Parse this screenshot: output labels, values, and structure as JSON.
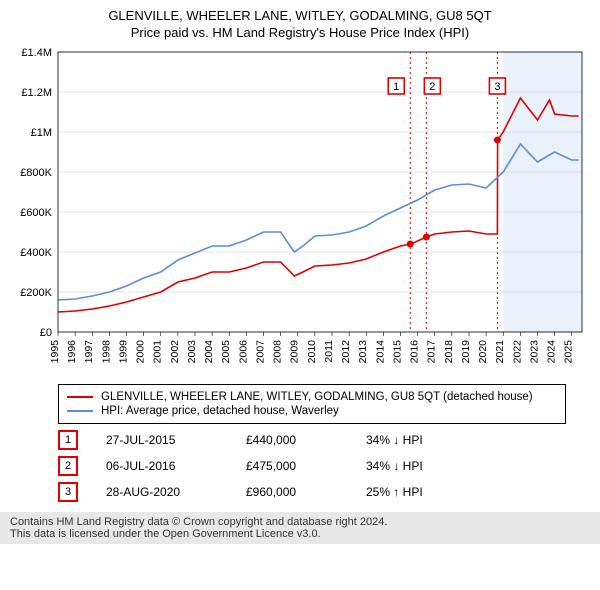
{
  "titles": {
    "line1": "GLENVILLE, WHEELER LANE, WITLEY, GODALMING, GU8 5QT",
    "line2": "Price paid vs. HM Land Registry's House Price Index (HPI)"
  },
  "chart": {
    "type": "line",
    "background_color": "#ffffff",
    "plot_bg": "#ffffff",
    "future_band_color": "#e9f1fa",
    "grid_color": "#cccccc",
    "annotation_line_color": "#e00000",
    "annotation_dash": "2 3",
    "x": {
      "min": 1995,
      "max": 2025.6,
      "ticks": [
        1995,
        1996,
        1997,
        1998,
        1999,
        2000,
        2001,
        2002,
        2003,
        2004,
        2005,
        2006,
        2007,
        2008,
        2009,
        2010,
        2011,
        2012,
        2013,
        2014,
        2015,
        2016,
        2017,
        2018,
        2019,
        2020,
        2021,
        2022,
        2023,
        2024,
        2025
      ],
      "tick_labels": [
        "1995",
        "1996",
        "1997",
        "1998",
        "1999",
        "2000",
        "2001",
        "2002",
        "2003",
        "2004",
        "2005",
        "2006",
        "2007",
        "2008",
        "2009",
        "2010",
        "2011",
        "2012",
        "2013",
        "2014",
        "2015",
        "2016",
        "2017",
        "2018",
        "2019",
        "2020",
        "2021",
        "2022",
        "2023",
        "2024",
        "2025"
      ]
    },
    "y": {
      "min": 0,
      "max": 1400000,
      "ticks": [
        0,
        200000,
        400000,
        600000,
        800000,
        1000000,
        1200000,
        1400000
      ],
      "tick_labels": [
        "£0",
        "£200K",
        "£400K",
        "£600K",
        "£800K",
        "£1M",
        "£1.2M",
        "£1.4M"
      ]
    },
    "series": [
      {
        "id": "property",
        "label": "GLENVILLE, WHEELER LANE, WITLEY, GODALMING, GU8 5QT (detached house)",
        "color": "#e00000",
        "width": 1.6,
        "points_x": [
          1995,
          1996,
          1997,
          1998,
          1999,
          2000,
          2001,
          2002,
          2003,
          2004,
          2005,
          2006,
          2007,
          2008,
          2008.8,
          2009.3,
          2010,
          2011,
          2012,
          2013,
          2014,
          2015,
          2015.6,
          2016,
          2016.5,
          2017,
          2018,
          2019,
          2020,
          2020.66,
          2020.67,
          2021,
          2022,
          2023,
          2023.7,
          2024,
          2025,
          2025.4
        ],
        "points_y": [
          100000,
          105000,
          115000,
          130000,
          150000,
          175000,
          200000,
          250000,
          270000,
          300000,
          300000,
          320000,
          350000,
          350000,
          280000,
          300000,
          330000,
          335000,
          345000,
          365000,
          400000,
          430000,
          440000,
          455000,
          475000,
          490000,
          500000,
          505000,
          490000,
          490000,
          960000,
          1000000,
          1170000,
          1060000,
          1160000,
          1090000,
          1080000,
          1080000
        ]
      },
      {
        "id": "hpi",
        "label": "HPI: Average price, detached house, Waverley",
        "color": "#5b8fd6",
        "width": 1.6,
        "points_x": [
          1995,
          1996,
          1997,
          1998,
          1999,
          2000,
          2001,
          2002,
          2003,
          2004,
          2005,
          2006,
          2007,
          2008,
          2008.8,
          2009.3,
          2010,
          2011,
          2012,
          2013,
          2014,
          2015,
          2016,
          2017,
          2018,
          2019,
          2020,
          2021,
          2022,
          2023,
          2024,
          2025,
          2025.4
        ],
        "points_y": [
          160000,
          165000,
          180000,
          200000,
          230000,
          270000,
          300000,
          360000,
          395000,
          430000,
          430000,
          460000,
          500000,
          500000,
          400000,
          430000,
          480000,
          485000,
          500000,
          530000,
          580000,
          620000,
          660000,
          710000,
          735000,
          740000,
          720000,
          800000,
          940000,
          850000,
          900000,
          860000,
          860000
        ]
      }
    ],
    "markers": [
      {
        "x": 2015.57,
        "y": 440000,
        "color": "#e00000",
        "r": 3.5
      },
      {
        "x": 2016.51,
        "y": 475000,
        "color": "#e00000",
        "r": 3.5
      },
      {
        "x": 2020.66,
        "y": 960000,
        "color": "#e00000",
        "r": 3.5
      }
    ],
    "annotation_boxes": [
      {
        "n": "1",
        "x": 2015.57
      },
      {
        "n": "2",
        "x": 2016.51
      },
      {
        "n": "3",
        "x": 2020.66
      }
    ],
    "future_band_from_x": 2021.0
  },
  "legend": {
    "rows": [
      {
        "color": "#e00000",
        "text": "GLENVILLE, WHEELER LANE, WITLEY, GODALMING, GU8 5QT (detached house)"
      },
      {
        "color": "#5b8fd6",
        "text": "HPI: Average price, detached house, Waverley"
      }
    ]
  },
  "events": [
    {
      "n": "1",
      "date": "27-JUL-2015",
      "price": "£440,000",
      "pct": "34% ↓ HPI"
    },
    {
      "n": "2",
      "date": "06-JUL-2016",
      "price": "£475,000",
      "pct": "34% ↓ HPI"
    },
    {
      "n": "3",
      "date": "28-AUG-2020",
      "price": "£960,000",
      "pct": "25% ↑ HPI"
    }
  ],
  "attribution": {
    "line1": "Contains HM Land Registry data © Crown copyright and database right 2024.",
    "line2": "This data is licensed under the Open Government Licence v3.0."
  },
  "style": {
    "annotation_box_border": "#e00000",
    "event_box_border": "#e00000"
  }
}
